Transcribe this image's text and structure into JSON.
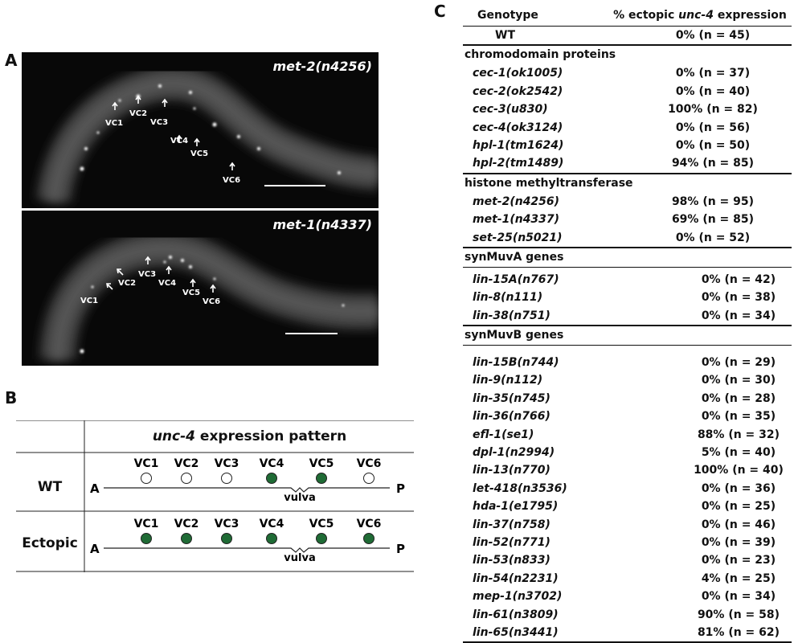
{
  "panel_labels": {
    "a": "A",
    "b": "B",
    "c": "C"
  },
  "panel_a": {
    "top": {
      "caption": "met-2(n4256)",
      "cells": [
        "VC1",
        "VC2",
        "VC3",
        "VC4",
        "VC5",
        "VC6"
      ]
    },
    "bottom": {
      "caption": "met-1(n4337)",
      "cells": [
        "VC1",
        "VC2",
        "VC3",
        "VC4",
        "VC5",
        "VC6"
      ]
    }
  },
  "panel_b": {
    "header_gene": "unc-4",
    "header_rest": " expression pattern",
    "cells": [
      "VC1",
      "VC2",
      "VC3",
      "VC4",
      "VC5",
      "VC6"
    ],
    "anterior": "A",
    "posterior": "P",
    "vulva": "vulva",
    "rows": [
      {
        "name": "WT",
        "filled": [
          false,
          false,
          false,
          true,
          true,
          false
        ]
      },
      {
        "name": "Ectopic",
        "filled": [
          true,
          true,
          true,
          true,
          true,
          true
        ]
      }
    ],
    "fill_color": "#1f6b35"
  },
  "panel_c": {
    "header": {
      "col1": "Genotype",
      "col2_pre": "% ectopic ",
      "col2_gene": "unc-4",
      "col2_post": " expression"
    },
    "wt": {
      "genotype": "WT",
      "value": "0% (n = 45)"
    },
    "sections": [
      {
        "title": "chromodomain proteins",
        "rows": [
          {
            "genotype": "cec-1(ok1005)",
            "value": "0% (n = 37)"
          },
          {
            "genotype": "cec-2(ok2542)",
            "value": "0% (n = 40)"
          },
          {
            "genotype": "cec-3(u830)",
            "value": "100% (n = 82)"
          },
          {
            "genotype": "cec-4(ok3124)",
            "value": "0% (n = 56)"
          },
          {
            "genotype": "hpl-1(tm1624)",
            "value": "0% (n = 50)"
          },
          {
            "genotype": "hpl-2(tm1489)",
            "value": "94% (n = 85)"
          }
        ]
      },
      {
        "title": "histone methyltransferase",
        "rows": [
          {
            "genotype": "met-2(n4256)",
            "value": "98% (n = 95)"
          },
          {
            "genotype": "met-1(n4337)",
            "value": "69% (n = 85)"
          },
          {
            "genotype": "set-25(n5021)",
            "value": "0% (n = 52)"
          }
        ]
      },
      {
        "title": "synMuvA genes",
        "rows": [
          {
            "genotype": "lin-15A(n767)",
            "value": "0% (n = 42)"
          },
          {
            "genotype": "lin-8(n111)",
            "value": "0% (n = 38)"
          },
          {
            "genotype": "lin-38(n751)",
            "value": "0% (n = 34)"
          }
        ]
      },
      {
        "title": "synMuvB genes",
        "rows": [
          {
            "genotype": "lin-15B(n744)",
            "value": "0% (n = 29)"
          },
          {
            "genotype": "lin-9(n112)",
            "value": "0% (n = 30)"
          },
          {
            "genotype": "lin-35(n745)",
            "value": "0% (n = 28)"
          },
          {
            "genotype": "lin-36(n766)",
            "value": "0% (n = 35)"
          },
          {
            "genotype": "efl-1(se1)",
            "value": "88% (n = 32)"
          },
          {
            "genotype": "dpl-1(n2994)",
            "value": "5% (n = 40)"
          },
          {
            "genotype": "lin-13(n770)",
            "value": "100% (n = 40)"
          },
          {
            "genotype": "let-418(n3536)",
            "value": "0% (n = 36)"
          },
          {
            "genotype": "hda-1(e1795)",
            "value": "0% (n = 25)"
          },
          {
            "genotype": "lin-37(n758)",
            "value": "0% (n = 46)"
          },
          {
            "genotype": "lin-52(n771)",
            "value": "0% (n = 39)"
          },
          {
            "genotype": "lin-53(n833)",
            "value": "0% (n = 23)"
          },
          {
            "genotype": "lin-54(n2231)",
            "value": "4% (n = 25)"
          },
          {
            "genotype": "mep-1(n3702)",
            "value": "0% (n = 34)"
          },
          {
            "genotype": "lin-61(n3809)",
            "value": "90% (n = 58)"
          },
          {
            "genotype": "lin-65(n3441)",
            "value": "81% (n = 62)"
          }
        ]
      }
    ]
  }
}
